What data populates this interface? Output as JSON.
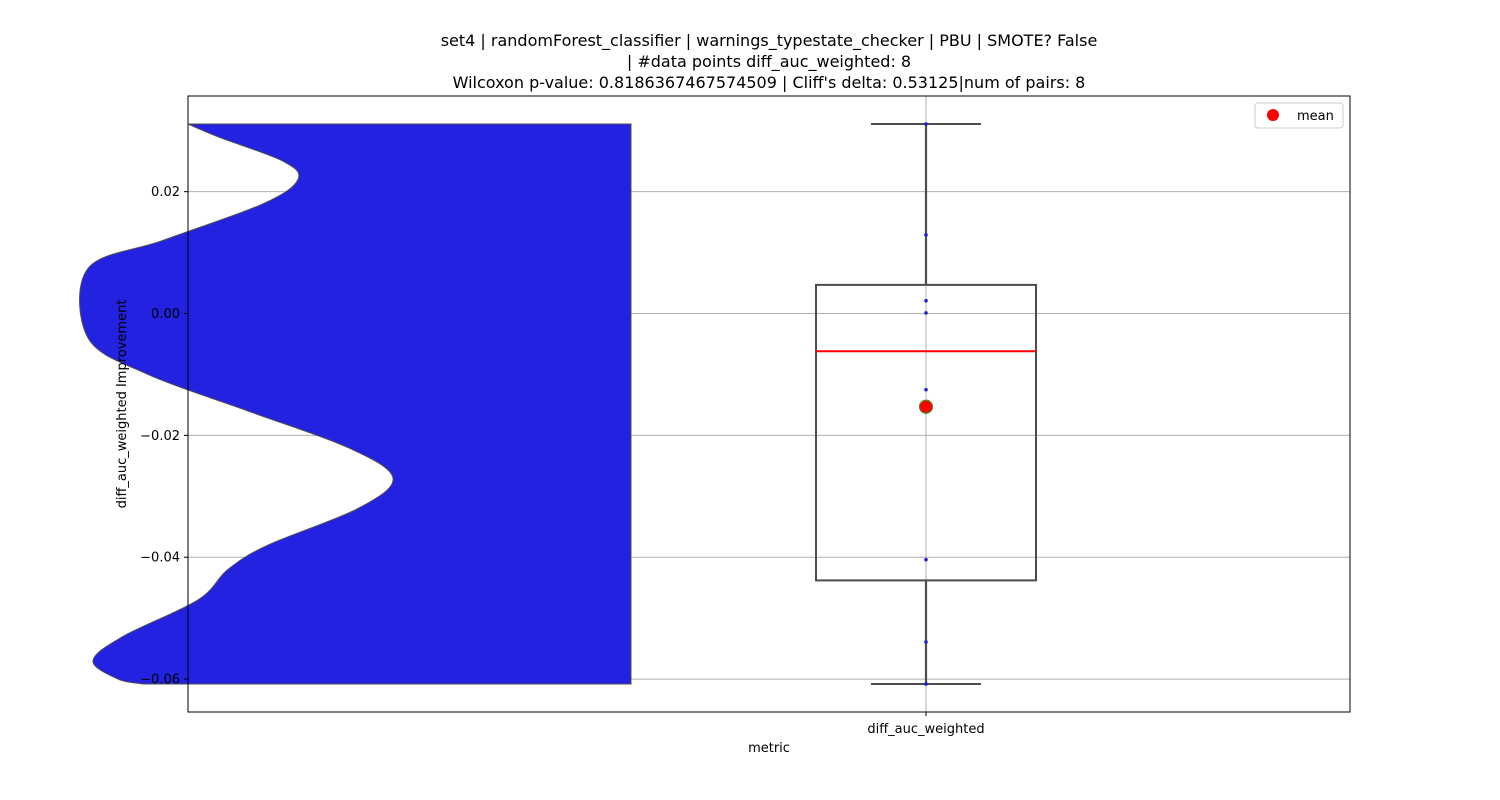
{
  "chart_data": {
    "type": "violin+box",
    "title_lines": [
      "set4 | randomForest_classifier | warnings_typestate_checker | PBU | SMOTE? False",
      "| #data points diff_auc_weighted: 8",
      "Wilcoxon p-value: 0.8186367467574509 | Cliff's delta: 0.53125|num of pairs: 8"
    ],
    "xlabel": "metric",
    "ylabel": "diff_auc_weighted Improvement",
    "categories": [
      "diff_auc_weighted"
    ],
    "ylim": [
      -0.0654,
      0.0357
    ],
    "yticks": [
      0.02,
      0.0,
      -0.02,
      -0.04,
      -0.06
    ],
    "ytick_labels": [
      "0.02",
      "0.00",
      "−0.02",
      "−0.04",
      "−0.06"
    ],
    "grid": true,
    "legend": {
      "position": "top-right",
      "entries": [
        {
          "label": "mean",
          "color": "#ff0000"
        }
      ]
    },
    "violin": {
      "color": "#2222e0",
      "side": "left",
      "profile": [
        [
          0.0311,
          0.0
        ],
        [
          0.029,
          0.06
        ],
        [
          0.025,
          0.19
        ],
        [
          0.022,
          0.22
        ],
        [
          0.018,
          0.15
        ],
        [
          0.012,
          -0.05
        ],
        [
          0.0074,
          -0.2
        ],
        [
          -0.004,
          -0.2
        ],
        [
          -0.01,
          -0.08
        ],
        [
          -0.016,
          0.12
        ],
        [
          -0.022,
          0.32
        ],
        [
          -0.027,
          0.41
        ],
        [
          -0.032,
          0.34
        ],
        [
          -0.038,
          0.16
        ],
        [
          -0.042,
          0.08
        ],
        [
          -0.047,
          0.02
        ],
        [
          -0.053,
          -0.13
        ],
        [
          -0.057,
          -0.19
        ],
        [
          -0.06,
          -0.14
        ],
        [
          -0.0608,
          -0.09
        ]
      ],
      "top": 0.0311,
      "bottom": -0.0608
    },
    "box": {
      "q1": -0.0438,
      "median": -0.0062,
      "q3": 0.0047,
      "whisker_low": -0.0608,
      "whisker_high": 0.0311,
      "mean": -0.0153,
      "median_color": "#ff0000",
      "mean_color": "#ff0000",
      "mean_edge_color": "#4a8a2a"
    },
    "points": [
      0.0311,
      0.0129,
      0.0021,
      0.0001,
      -0.0125,
      -0.0404,
      -0.0539,
      -0.0608
    ]
  }
}
